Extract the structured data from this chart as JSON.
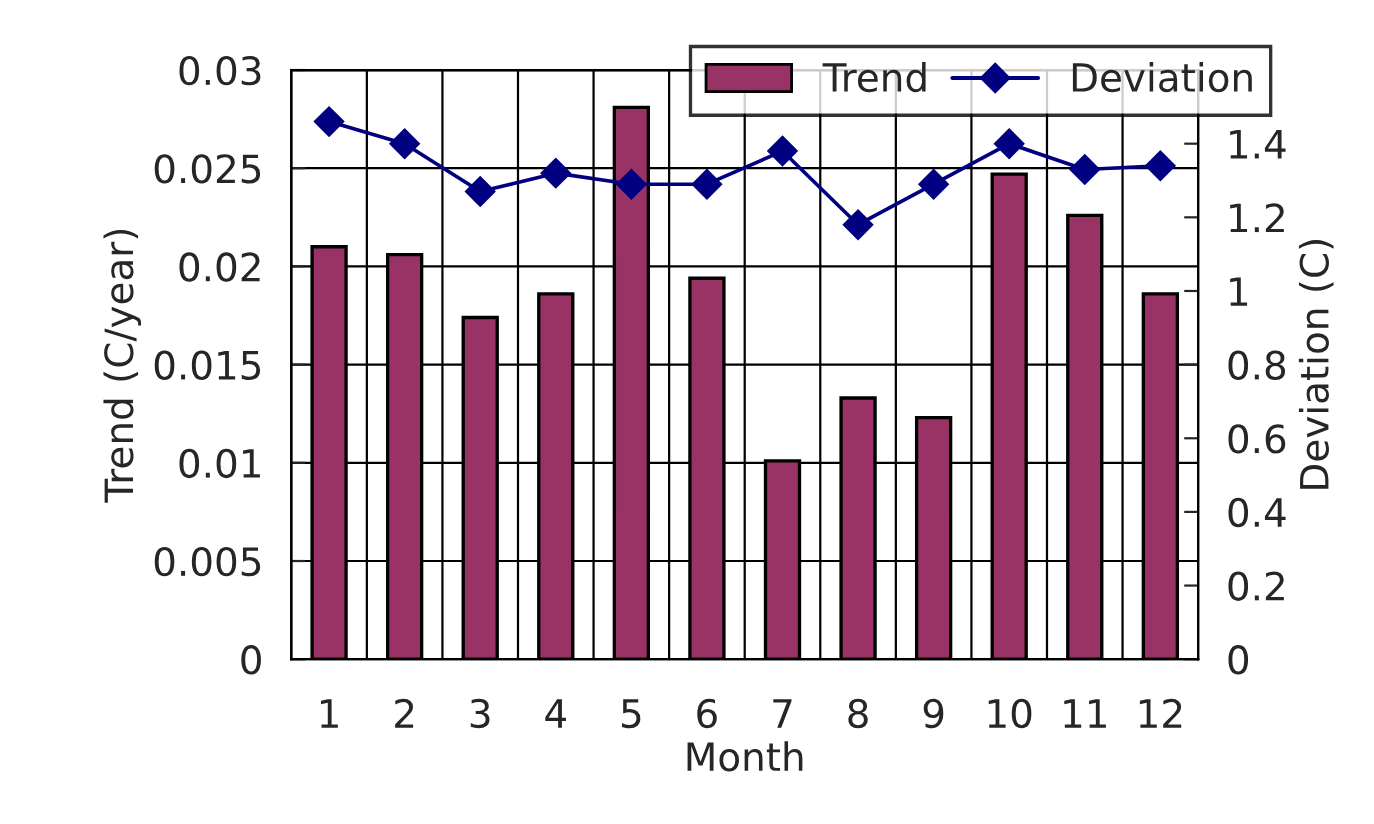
{
  "chart_data": {
    "type": "bar",
    "xlabel": "Month",
    "ylabel": "Trend (C/year)",
    "y2label": "Deviation (C)",
    "categories": [
      "1",
      "2",
      "3",
      "4",
      "5",
      "6",
      "7",
      "8",
      "9",
      "10",
      "11",
      "12"
    ],
    "series": [
      {
        "name": "Trend",
        "color": "#993366",
        "values": [
          0.021,
          0.0206,
          0.0174,
          0.0186,
          0.0281,
          0.0194,
          0.0101,
          0.0133,
          0.0123,
          0.0247,
          0.0226,
          0.0186
        ]
      },
      {
        "name": "Deviation",
        "type": "line",
        "axis": "y2",
        "color": "#000080",
        "marker": "diamond",
        "values": [
          1.46,
          1.4,
          1.27,
          1.32,
          1.29,
          1.29,
          1.38,
          1.18,
          1.29,
          1.4,
          1.33,
          1.34
        ]
      }
    ],
    "ylim": [
      0,
      0.03
    ],
    "yticks": [
      0,
      0.005,
      0.01,
      0.015,
      0.02,
      0.025,
      0.03
    ],
    "y2lim": [
      0,
      1.6
    ],
    "y2ticks": [
      0,
      0.2,
      0.4,
      0.6,
      0.8,
      1,
      1.2,
      1.4
    ],
    "grid": true,
    "legend": "top right"
  }
}
